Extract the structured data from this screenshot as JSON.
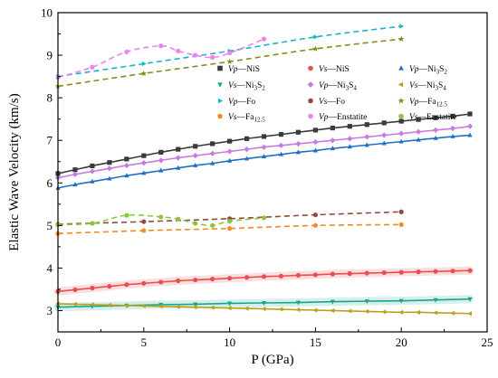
{
  "chart_data": {
    "type": "line",
    "title": "",
    "xlabel": "P (GPa)",
    "ylabel": "Elastic Wave Velocity (km/s)",
    "xlim": [
      0,
      25
    ],
    "ylim": [
      2.5,
      10
    ],
    "xticks": [
      0,
      5,
      10,
      15,
      20,
      25
    ],
    "yticks": [
      3,
      4,
      5,
      6,
      7,
      8,
      9,
      10
    ],
    "grid": false,
    "legend_position": "upper-right, inside plot, 3 columns",
    "legend": [
      {
        "key": "vp-nis",
        "wave": "Vp",
        "mineral": "NiS",
        "sub": "",
        "marker": "square",
        "color": "#3a3a3a"
      },
      {
        "key": "vs-nis",
        "wave": "Vs",
        "mineral": "NiS",
        "sub": "",
        "marker": "circle",
        "color": "#e8504f"
      },
      {
        "key": "vp-ni3s2",
        "wave": "Vp",
        "mineral": "Ni",
        "sub": "3S2",
        "marker": "triangle-up",
        "color": "#1f6fc5"
      },
      {
        "key": "vs-ni3s2",
        "wave": "Vs",
        "mineral": "Ni",
        "sub": "3S2",
        "marker": "triangle-down",
        "color": "#1aa58a"
      },
      {
        "key": "vp-ni3s4",
        "wave": "Vp",
        "mineral": "Ni",
        "sub": "3S4",
        "marker": "diamond",
        "color": "#c77be0"
      },
      {
        "key": "vs-ni3s4",
        "wave": "Vs",
        "mineral": "Ni",
        "sub": "3S4",
        "marker": "triangle-left",
        "color": "#b8a020"
      },
      {
        "key": "vp-fo",
        "wave": "Vp",
        "mineral": "Fo",
        "sub": "",
        "marker": "triangle-right",
        "color": "#17b5c9"
      },
      {
        "key": "vs-fo",
        "wave": "Vs",
        "mineral": "Fo",
        "sub": "",
        "marker": "circle",
        "color": "#8f4a3e"
      },
      {
        "key": "vp-fa",
        "wave": "Vp",
        "mineral": "Fa",
        "sub": "12.5",
        "marker": "star",
        "color": "#8b8b1a"
      },
      {
        "key": "vs-fa",
        "wave": "Vs",
        "mineral": "Fa",
        "sub": "12.5",
        "marker": "pentagon",
        "color": "#f08a24"
      },
      {
        "key": "vp-en",
        "wave": "Vp",
        "mineral": "Enstatite",
        "sub": "",
        "marker": "circle",
        "color": "#ee82ee"
      },
      {
        "key": "vs-en",
        "wave": "Vs",
        "mineral": "Enstatite",
        "sub": "",
        "marker": "circle",
        "color": "#8cc63f"
      }
    ],
    "series": [
      {
        "key": "vp-nis",
        "style": "solid",
        "fit": true,
        "x": [
          0,
          1,
          2,
          3,
          4,
          5,
          6,
          7,
          8,
          9,
          10,
          11,
          12,
          13,
          14,
          15,
          16,
          17,
          18,
          19,
          20,
          21,
          22,
          23,
          24
        ],
        "y": [
          6.22,
          6.31,
          6.4,
          6.48,
          6.56,
          6.64,
          6.72,
          6.79,
          6.86,
          6.92,
          6.98,
          7.04,
          7.09,
          7.14,
          7.19,
          7.24,
          7.29,
          7.33,
          7.37,
          7.41,
          7.45,
          7.49,
          7.53,
          7.57,
          7.62
        ]
      },
      {
        "key": "vp-ni3s4",
        "style": "solid",
        "fit": true,
        "x": [
          0,
          1,
          2,
          3,
          4,
          5,
          6,
          7,
          8,
          9,
          10,
          11,
          12,
          13,
          14,
          15,
          16,
          17,
          18,
          19,
          20,
          21,
          22,
          23,
          24
        ],
        "y": [
          6.12,
          6.2,
          6.27,
          6.34,
          6.41,
          6.47,
          6.53,
          6.59,
          6.64,
          6.69,
          6.74,
          6.79,
          6.84,
          6.88,
          6.92,
          6.96,
          7.0,
          7.04,
          7.08,
          7.12,
          7.16,
          7.2,
          7.24,
          7.28,
          7.33
        ]
      },
      {
        "key": "vp-ni3s2",
        "style": "solid",
        "fit": true,
        "x": [
          0,
          1,
          2,
          3,
          4,
          5,
          6,
          7,
          8,
          9,
          10,
          11,
          12,
          13,
          14,
          15,
          16,
          17,
          18,
          19,
          20,
          21,
          22,
          23,
          24
        ],
        "y": [
          5.88,
          5.96,
          6.03,
          6.1,
          6.17,
          6.23,
          6.29,
          6.35,
          6.41,
          6.46,
          6.52,
          6.57,
          6.62,
          6.67,
          6.72,
          6.76,
          6.81,
          6.85,
          6.89,
          6.93,
          6.97,
          7.01,
          7.05,
          7.09,
          7.12
        ]
      },
      {
        "key": "vs-nis",
        "style": "solid",
        "fit": true,
        "band": true,
        "x": [
          0,
          1,
          2,
          3,
          4,
          5,
          6,
          7,
          8,
          9,
          10,
          11,
          12,
          13,
          14,
          15,
          16,
          17,
          18,
          19,
          20,
          21,
          22,
          23,
          24
        ],
        "y": [
          3.45,
          3.49,
          3.53,
          3.57,
          3.61,
          3.64,
          3.67,
          3.7,
          3.72,
          3.74,
          3.76,
          3.78,
          3.8,
          3.81,
          3.83,
          3.84,
          3.86,
          3.87,
          3.88,
          3.89,
          3.9,
          3.91,
          3.92,
          3.93,
          3.94
        ]
      },
      {
        "key": "vs-ni3s2",
        "style": "solid",
        "fit": true,
        "band": true,
        "x": [
          0,
          2,
          4,
          6,
          8,
          10,
          12,
          14,
          16,
          18,
          20,
          22,
          24
        ],
        "y": [
          3.08,
          3.1,
          3.12,
          3.14,
          3.15,
          3.17,
          3.18,
          3.19,
          3.21,
          3.22,
          3.23,
          3.25,
          3.27
        ]
      },
      {
        "key": "vs-ni3s4",
        "style": "solid",
        "fit": true,
        "x": [
          0,
          1,
          2,
          3,
          4,
          5,
          6,
          7,
          8,
          9,
          10,
          11,
          12,
          13,
          14,
          15,
          16,
          17,
          18,
          19,
          20,
          21,
          22,
          23,
          24
        ],
        "y": [
          3.16,
          3.15,
          3.14,
          3.13,
          3.12,
          3.11,
          3.1,
          3.09,
          3.08,
          3.07,
          3.06,
          3.05,
          3.04,
          3.03,
          3.02,
          3.01,
          3.0,
          2.99,
          2.98,
          2.97,
          2.96,
          2.96,
          2.95,
          2.94,
          2.93
        ]
      },
      {
        "key": "vp-fo",
        "style": "dashed",
        "fit": true,
        "x": [
          0,
          5,
          10,
          15,
          20
        ],
        "y": [
          8.5,
          8.8,
          9.1,
          9.43,
          9.68
        ]
      },
      {
        "key": "vp-fa",
        "style": "dashed",
        "fit": true,
        "x": [
          0,
          5,
          10,
          15,
          20
        ],
        "y": [
          8.27,
          8.57,
          8.85,
          9.15,
          9.38
        ]
      },
      {
        "key": "vp-en",
        "style": "dashed",
        "fit": false,
        "x": [
          0,
          2,
          4,
          6,
          7,
          8,
          9,
          10,
          12
        ],
        "y": [
          8.48,
          8.72,
          9.08,
          9.22,
          9.1,
          9.0,
          8.95,
          9.05,
          9.38
        ]
      },
      {
        "key": "vs-fo",
        "style": "dashed",
        "fit": true,
        "x": [
          0,
          5,
          10,
          15,
          20
        ],
        "y": [
          5.03,
          5.09,
          5.16,
          5.25,
          5.32
        ]
      },
      {
        "key": "vs-fa",
        "style": "dashed",
        "fit": true,
        "x": [
          0,
          5,
          10,
          15,
          20
        ],
        "y": [
          4.81,
          4.88,
          4.93,
          5.0,
          5.02
        ]
      },
      {
        "key": "vs-en",
        "style": "dashed",
        "fit": false,
        "x": [
          0,
          2,
          4,
          6,
          7,
          8,
          9,
          10,
          12
        ],
        "y": [
          5.02,
          5.05,
          5.24,
          5.2,
          5.15,
          5.05,
          5.0,
          5.1,
          5.18
        ]
      }
    ]
  }
}
